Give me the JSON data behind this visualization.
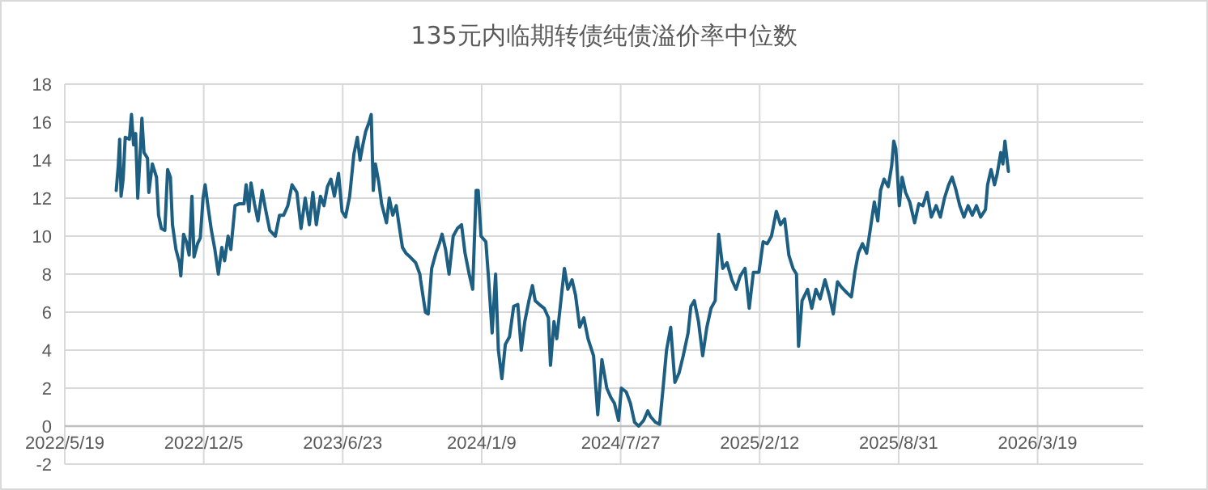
{
  "chart_data": {
    "type": "line",
    "title": "135元内临期转债纯债溢价率中位数",
    "x": [
      "2022-08-01",
      "2022-08-04",
      "2022-08-06",
      "2022-08-08",
      "2022-08-11",
      "2022-08-14",
      "2022-08-20",
      "2022-08-23",
      "2022-08-26",
      "2022-08-29",
      "2022-09-01",
      "2022-09-04",
      "2022-09-07",
      "2022-09-10",
      "2022-09-15",
      "2022-09-17",
      "2022-09-22",
      "2022-09-28",
      "2022-10-01",
      "2022-10-05",
      "2022-10-10",
      "2022-10-14",
      "2022-10-18",
      "2022-10-21",
      "2022-10-26",
      "2022-10-31",
      "2022-11-02",
      "2022-11-06",
      "2022-11-10",
      "2022-11-14",
      "2022-11-18",
      "2022-11-21",
      "2022-11-26",
      "2022-11-30",
      "2022-12-04",
      "2022-12-07",
      "2022-12-11",
      "2022-12-16",
      "2022-12-21",
      "2022-12-26",
      "2022-12-31",
      "2023-01-04",
      "2023-01-09",
      "2023-01-13",
      "2023-01-19",
      "2023-01-25",
      "2023-02-01",
      "2023-02-04",
      "2023-02-08",
      "2023-02-11",
      "2023-02-16",
      "2023-02-21",
      "2023-02-27",
      "2023-03-04",
      "2023-03-10",
      "2023-03-18",
      "2023-03-24",
      "2023-03-30",
      "2023-04-05",
      "2023-04-11",
      "2023-04-18",
      "2023-04-24",
      "2023-04-30",
      "2023-05-06",
      "2023-05-11",
      "2023-05-16",
      "2023-05-22",
      "2023-05-27",
      "2023-06-01",
      "2023-06-06",
      "2023-06-11",
      "2023-06-17",
      "2023-06-22",
      "2023-06-27",
      "2023-07-03",
      "2023-07-09",
      "2023-07-14",
      "2023-07-18",
      "2023-07-22",
      "2023-07-26",
      "2023-07-31",
      "2023-08-03",
      "2023-08-06",
      "2023-08-09",
      "2023-08-14",
      "2023-08-18",
      "2023-08-25",
      "2023-08-29",
      "2023-09-03",
      "2023-09-08",
      "2023-09-12",
      "2023-09-17",
      "2023-09-22",
      "2023-09-28",
      "2023-10-06",
      "2023-10-12",
      "2023-10-13",
      "2023-10-20",
      "2023-10-24",
      "2023-10-29",
      "2023-11-04",
      "2023-11-09",
      "2023-11-13",
      "2023-11-18",
      "2023-11-23",
      "2023-11-29",
      "2023-12-05",
      "2023-12-11",
      "2023-12-16",
      "2023-12-22",
      "2023-12-27",
      "2024-01-01",
      "2024-01-04",
      "2024-01-08",
      "2024-01-15",
      "2024-01-19",
      "2024-01-24",
      "2024-01-29",
      "2024-02-02",
      "2024-02-07",
      "2024-02-12",
      "2024-02-18",
      "2024-02-24",
      "2024-03-01",
      "2024-03-06",
      "2024-03-11",
      "2024-03-17",
      "2024-03-22",
      "2024-03-26",
      "2024-04-01",
      "2024-04-08",
      "2024-04-14",
      "2024-04-17",
      "2024-04-22",
      "2024-04-26",
      "2024-05-02",
      "2024-05-07",
      "2024-05-12",
      "2024-05-18",
      "2024-05-23",
      "2024-05-29",
      "2024-06-04",
      "2024-06-10",
      "2024-06-18",
      "2024-06-24",
      "2024-06-30",
      "2024-07-07",
      "2024-07-13",
      "2024-07-18",
      "2024-07-24",
      "2024-07-28",
      "2024-08-04",
      "2024-08-10",
      "2024-08-16",
      "2024-08-22",
      "2024-08-29",
      "2024-09-04",
      "2024-09-08",
      "2024-09-15",
      "2024-09-21",
      "2024-09-26",
      "2024-10-01",
      "2024-10-07",
      "2024-10-13",
      "2024-10-19",
      "2024-10-25",
      "2024-11-01",
      "2024-11-05",
      "2024-11-10",
      "2024-11-16",
      "2024-11-22",
      "2024-11-28",
      "2024-12-04",
      "2024-12-10",
      "2024-12-15",
      "2024-12-21",
      "2024-12-27",
      "2025-01-03",
      "2025-01-09",
      "2025-01-15",
      "2025-01-22",
      "2025-01-28",
      "2025-02-03",
      "2025-02-11",
      "2025-02-17",
      "2025-02-23",
      "2025-03-01",
      "2025-03-08",
      "2025-03-14",
      "2025-03-20",
      "2025-03-26",
      "2025-04-01",
      "2025-04-06",
      "2025-04-09",
      "2025-04-14",
      "2025-04-22",
      "2025-04-28",
      "2025-05-04",
      "2025-05-10",
      "2025-05-17",
      "2025-05-23",
      "2025-05-29",
      "2025-06-04",
      "2025-06-10",
      "2025-06-18",
      "2025-06-24",
      "2025-06-29",
      "2025-07-04",
      "2025-07-10",
      "2025-07-16",
      "2025-07-21",
      "2025-07-27",
      "2025-08-01",
      "2025-08-05",
      "2025-08-10",
      "2025-08-16",
      "2025-08-21",
      "2025-08-24",
      "2025-08-27",
      "2025-09-01",
      "2025-09-05",
      "2025-09-10",
      "2025-09-16",
      "2025-09-23",
      "2025-09-29",
      "2025-10-05",
      "2025-10-11",
      "2025-10-17",
      "2025-10-24",
      "2025-10-30",
      "2025-11-05",
      "2025-11-11",
      "2025-11-16",
      "2025-11-21",
      "2025-11-27",
      "2025-12-03",
      "2025-12-09",
      "2025-12-15",
      "2025-12-21",
      "2025-12-27",
      "2026-01-03",
      "2026-01-06",
      "2026-01-11",
      "2026-01-16",
      "2026-01-20",
      "2026-01-25",
      "2026-01-28",
      "2026-01-31",
      "2026-02-05"
    ],
    "series": [
      {
        "color": "#1d5f82",
        "values": [
          12.4,
          13.7,
          15.1,
          12.1,
          13.0,
          15.2,
          15.1,
          16.4,
          14.8,
          15.4,
          12.0,
          14.0,
          16.2,
          14.4,
          14.1,
          12.3,
          13.8,
          13.1,
          11.1,
          10.4,
          10.3,
          13.5,
          13.1,
          10.6,
          9.3,
          8.6,
          7.9,
          10.1,
          9.7,
          9.0,
          12.1,
          8.9,
          9.6,
          9.9,
          12.0,
          12.7,
          11.6,
          10.3,
          9.3,
          8.0,
          9.4,
          8.7,
          10.0,
          9.3,
          11.6,
          11.7,
          11.7,
          12.7,
          11.3,
          12.8,
          11.7,
          10.8,
          12.4,
          11.4,
          10.3,
          10.0,
          11.1,
          11.1,
          11.6,
          12.7,
          12.3,
          10.4,
          12.0,
          10.6,
          12.3,
          10.6,
          12.1,
          11.6,
          12.6,
          13.0,
          12.1,
          13.3,
          11.3,
          11.0,
          12.1,
          14.3,
          15.2,
          14.0,
          14.8,
          15.5,
          16.0,
          16.4,
          12.4,
          13.8,
          12.8,
          11.7,
          10.7,
          12.0,
          11.1,
          11.6,
          10.6,
          9.4,
          9.1,
          8.9,
          8.6,
          8.0,
          7.7,
          6.0,
          5.9,
          8.3,
          9.1,
          9.6,
          10.1,
          9.3,
          8.0,
          10.0,
          10.4,
          10.6,
          9.1,
          8.0,
          7.2,
          12.4,
          12.4,
          10.0,
          9.7,
          7.7,
          4.9,
          8.0,
          4.0,
          2.5,
          4.3,
          4.7,
          6.3,
          6.4,
          4.0,
          5.5,
          6.6,
          7.4,
          6.6,
          6.4,
          6.2,
          5.7,
          3.2,
          5.5,
          4.6,
          6.6,
          8.3,
          7.2,
          7.7,
          6.9,
          5.2,
          5.7,
          4.6,
          3.7,
          0.6,
          3.5,
          2.0,
          1.5,
          1.2,
          0.3,
          2.0,
          1.8,
          1.2,
          0.2,
          0.0,
          0.3,
          0.8,
          0.5,
          0.2,
          0.1,
          2.0,
          4.0,
          5.2,
          2.3,
          2.8,
          3.7,
          4.9,
          6.3,
          6.6,
          5.5,
          3.7,
          5.2,
          6.2,
          6.6,
          10.1,
          8.3,
          8.6,
          7.7,
          7.2,
          7.9,
          8.3,
          6.2,
          8.1,
          8.1,
          9.7,
          9.6,
          10.0,
          11.3,
          10.6,
          10.9,
          9.0,
          8.3,
          8.0,
          4.2,
          6.6,
          7.2,
          6.2,
          7.2,
          6.7,
          7.7,
          6.9,
          5.9,
          7.6,
          7.3,
          7.0,
          6.8,
          8.1,
          9.1,
          9.6,
          9.1,
          10.3,
          11.8,
          10.8,
          12.4,
          13.0,
          12.6,
          13.7,
          15.0,
          14.6,
          11.6,
          13.1,
          12.3,
          11.8,
          10.7,
          11.7,
          11.6,
          12.3,
          11.0,
          11.6,
          11.0,
          12.0,
          12.7,
          13.1,
          12.5,
          11.6,
          11.0,
          11.6,
          11.1,
          11.6,
          11.0,
          11.4,
          12.7,
          13.5,
          12.7,
          13.3,
          14.4,
          13.8,
          15.0,
          13.4
        ]
      }
    ],
    "xlim": [
      "2022-05-19",
      "2026-08-18"
    ],
    "xticks": [
      {
        "value": "2022-05-19",
        "label": "2022/5/19"
      },
      {
        "value": "2022-12-05",
        "label": "2022/12/5"
      },
      {
        "value": "2023-06-23",
        "label": "2023/6/23"
      },
      {
        "value": "2024-01-09",
        "label": "2024/1/9"
      },
      {
        "value": "2024-07-27",
        "label": "2024/7/27"
      },
      {
        "value": "2025-02-12",
        "label": "2025/2/12"
      },
      {
        "value": "2025-08-31",
        "label": "2025/8/31"
      },
      {
        "value": "2026-03-19",
        "label": "2026/3/19"
      }
    ],
    "ylim": [
      -2,
      18
    ],
    "yticks": [
      -2,
      0,
      2,
      4,
      6,
      8,
      10,
      12,
      14,
      16,
      18
    ],
    "grid": true,
    "marker": "none",
    "line_style": "solid"
  }
}
